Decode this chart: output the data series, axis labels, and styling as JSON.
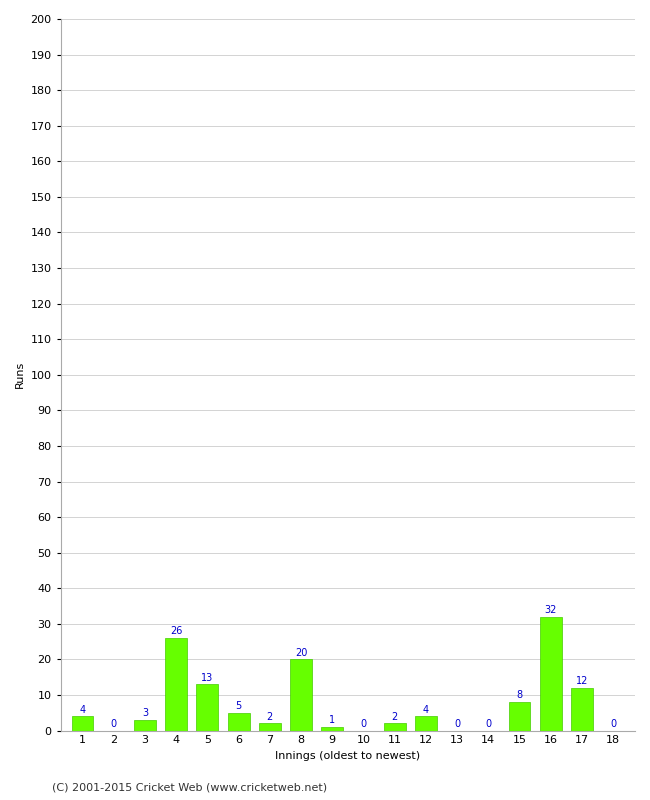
{
  "innings": [
    1,
    2,
    3,
    4,
    5,
    6,
    7,
    8,
    9,
    10,
    11,
    12,
    13,
    14,
    15,
    16,
    17,
    18
  ],
  "runs": [
    4,
    0,
    3,
    26,
    13,
    5,
    2,
    20,
    1,
    0,
    2,
    4,
    0,
    0,
    8,
    32,
    12,
    0
  ],
  "bar_color": "#66ff00",
  "bar_edge_color": "#44cc00",
  "label_color": "#0000cc",
  "xlabel": "Innings (oldest to newest)",
  "ylabel": "Runs",
  "ylim": [
    0,
    200
  ],
  "yticks": [
    0,
    10,
    20,
    30,
    40,
    50,
    60,
    70,
    80,
    90,
    100,
    110,
    120,
    130,
    140,
    150,
    160,
    170,
    180,
    190,
    200
  ],
  "footer": "(C) 2001-2015 Cricket Web (www.cricketweb.net)",
  "bg_color": "#ffffff",
  "grid_color": "#cccccc",
  "label_fontsize": 7,
  "axis_fontsize": 8,
  "footer_fontsize": 8
}
